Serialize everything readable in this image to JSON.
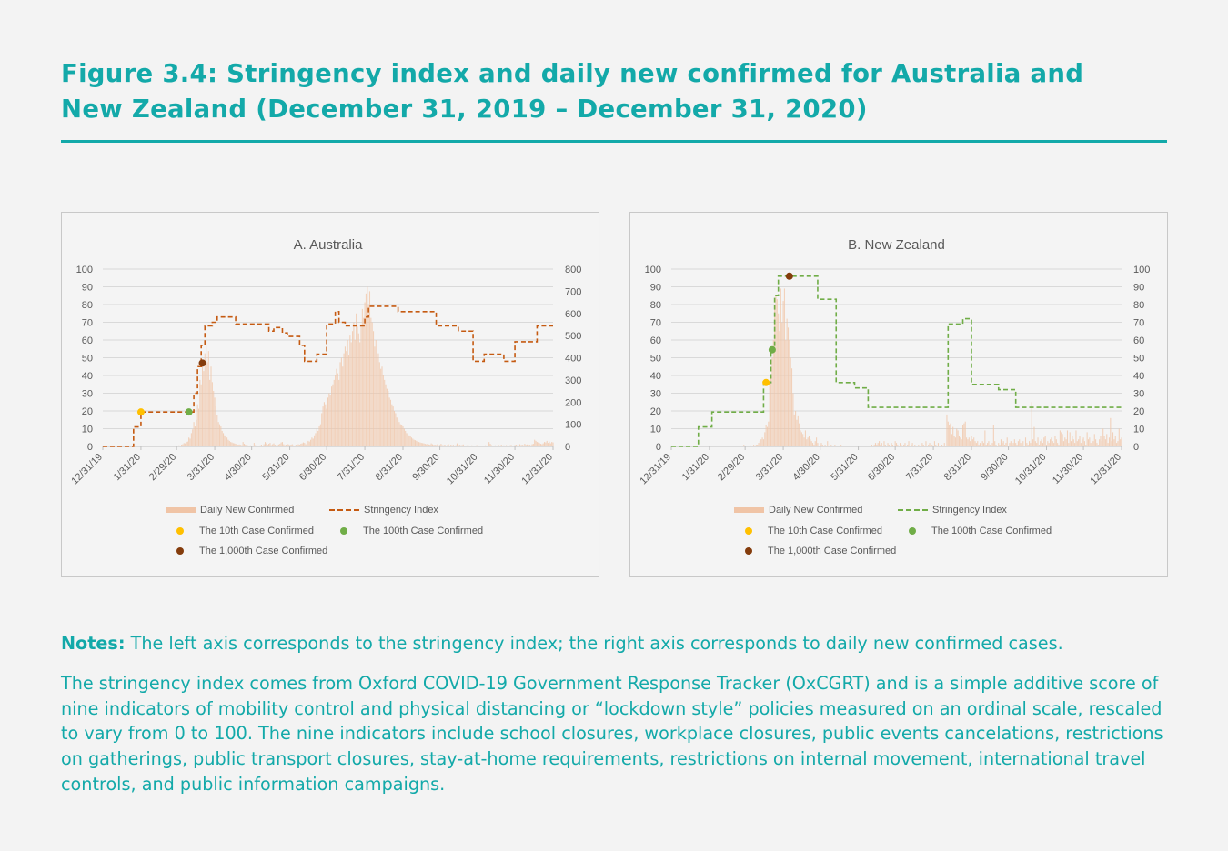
{
  "figure_title": "Figure 3.4: Stringency index and daily new confirmed for Australia and New Zealand (December 31, 2019 – December 31, 2020)",
  "notes": {
    "label": "Notes:",
    "line1": "The left axis corresponds to the stringency index; the right axis corresponds to daily new confirmed cases.",
    "paragraph": "The stringency index comes from Oxford COVID-19 Government Response Tracker (OxCGRT) and is a simple additive score of nine indicators of mobility control and physical distancing or “lockdown style” policies measured on an ordinal scale, rescaled to vary from 0 to 100. The nine indicators include school closures, workplace closures, public events cancelations, restrictions on gatherings, public transport closures, stay-at-home requirements, restrictions on internal movement, international travel controls, and public information campaigns."
  },
  "chart_data": [
    {
      "type": "bar+line",
      "title": "A. Australia",
      "x_start": "12/31/19",
      "x_ticks": [
        "12/31/19",
        "1/31/20",
        "2/29/20",
        "3/31/20",
        "4/30/20",
        "5/31/20",
        "6/30/20",
        "7/31/20",
        "8/31/20",
        "9/30/20",
        "10/31/20",
        "11/30/20",
        "12/31/20"
      ],
      "x_tick_days": [
        0,
        31,
        60,
        91,
        121,
        152,
        182,
        213,
        244,
        274,
        305,
        335,
        366
      ],
      "left_axis": {
        "range": [
          0,
          100
        ],
        "ticks": [
          0,
          10,
          20,
          30,
          40,
          50,
          60,
          70,
          80,
          90,
          100
        ]
      },
      "right_axis": {
        "range": [
          0,
          800
        ],
        "ticks": [
          0,
          100,
          200,
          300,
          400,
          500,
          600,
          700,
          800
        ]
      },
      "grid": true,
      "legend_placement": "bottom",
      "legend": {
        "bars": "Daily New Confirmed",
        "line": "Stringency Index",
        "p10": "The 10th Case Confirmed",
        "p100": "The 100th Case Confirmed",
        "p1000": "The 1,000th Case Confirmed"
      },
      "colors": {
        "bars": "#f0c4a6",
        "line": "#c55a11",
        "p10": "#ffc000",
        "p100": "#70ad47",
        "p1000": "#843c0c"
      },
      "daily_new_confirmed": [
        0,
        0,
        0,
        0,
        0,
        0,
        0,
        0,
        0,
        0,
        0,
        0,
        0,
        0,
        0,
        0,
        0,
        0,
        0,
        0,
        0,
        0,
        0,
        0,
        0,
        1,
        0,
        0,
        1,
        2,
        1,
        0,
        2,
        1,
        0,
        0,
        0,
        0,
        0,
        0,
        0,
        0,
        0,
        0,
        0,
        0,
        0,
        0,
        0,
        0,
        0,
        0,
        0,
        0,
        0,
        0,
        0,
        1,
        2,
        0,
        3,
        2,
        5,
        4,
        8,
        10,
        15,
        14,
        20,
        22,
        40,
        35,
        60,
        77,
        110,
        90,
        120,
        190,
        170,
        300,
        280,
        370,
        340,
        420,
        460,
        380,
        430,
        300,
        360,
        290,
        250,
        220,
        180,
        140,
        110,
        100,
        90,
        70,
        60,
        50,
        45,
        40,
        30,
        25,
        20,
        18,
        15,
        14,
        12,
        10,
        8,
        9,
        7,
        6,
        20,
        12,
        8,
        6,
        5,
        4,
        5,
        4,
        3,
        16,
        6,
        4,
        3,
        2,
        5,
        8,
        4,
        10,
        20,
        14,
        8,
        12,
        16,
        6,
        10,
        14,
        8,
        5,
        6,
        9,
        12,
        18,
        20,
        10,
        6,
        8,
        12,
        9,
        6,
        8,
        10,
        5,
        4,
        8,
        6,
        10,
        8,
        12,
        14,
        18,
        16,
        10,
        20,
        25,
        22,
        30,
        40,
        35,
        50,
        60,
        80,
        70,
        90,
        100,
        150,
        180,
        200,
        190,
        170,
        220,
        240,
        230,
        270,
        280,
        300,
        320,
        350,
        330,
        300,
        380,
        400,
        360,
        420,
        450,
        430,
        480,
        410,
        500,
        470,
        520,
        560,
        480,
        600,
        540,
        510,
        470,
        550,
        620,
        580,
        650,
        690,
        720,
        640,
        700,
        580,
        560,
        520,
        450,
        480,
        400,
        420,
        380,
        350,
        360,
        320,
        300,
        280,
        260,
        250,
        220,
        210,
        190,
        180,
        160,
        150,
        130,
        120,
        110,
        100,
        95,
        90,
        80,
        70,
        60,
        55,
        50,
        45,
        40,
        35,
        30,
        28,
        25,
        22,
        20,
        18,
        16,
        15,
        14,
        12,
        10,
        12,
        9,
        8,
        14,
        10,
        7,
        8,
        6,
        10,
        5,
        7,
        12,
        6,
        5,
        8,
        4,
        6,
        10,
        4,
        8,
        5,
        7,
        3,
        6,
        14,
        4,
        8,
        5,
        6,
        9,
        4,
        3,
        5,
        6,
        4,
        3,
        5,
        3,
        2,
        4,
        6,
        3,
        2,
        4,
        3,
        2,
        3,
        5,
        2,
        4,
        20,
        12,
        6,
        4,
        3,
        5,
        2,
        4,
        6,
        3,
        8,
        4,
        5,
        3,
        6,
        4,
        3,
        5,
        7,
        4,
        2,
        6,
        8,
        5,
        4,
        10,
        6,
        8,
        5,
        12,
        7,
        9,
        6,
        8,
        5,
        10,
        12,
        30,
        25,
        20,
        18,
        15,
        12,
        10,
        14,
        20,
        18,
        25,
        16,
        22,
        14,
        20,
        18
      ],
      "stringency_steps": [
        [
          0,
          0
        ],
        [
          25,
          11
        ],
        [
          31,
          19.4
        ],
        [
          74,
          30
        ],
        [
          77,
          45
        ],
        [
          80,
          57
        ],
        [
          83,
          68
        ],
        [
          89,
          70
        ],
        [
          93,
          73
        ],
        [
          108,
          69
        ],
        [
          135,
          65
        ],
        [
          139,
          67
        ],
        [
          146,
          64
        ],
        [
          150,
          62
        ],
        [
          160,
          57
        ],
        [
          164,
          48
        ],
        [
          174,
          52
        ],
        [
          182,
          69
        ],
        [
          189,
          76
        ],
        [
          192,
          70
        ],
        [
          197,
          68
        ],
        [
          213,
          73
        ],
        [
          216,
          79
        ],
        [
          240,
          76
        ],
        [
          271,
          68
        ],
        [
          289,
          65
        ],
        [
          301,
          48
        ],
        [
          310,
          52
        ],
        [
          326,
          48
        ],
        [
          335,
          59
        ],
        [
          353,
          68
        ],
        [
          366,
          68
        ]
      ],
      "markers": {
        "p10": [
          31,
          19.4
        ],
        "p100": [
          70,
          19.4
        ],
        "p1000": [
          81,
          47
        ]
      }
    },
    {
      "type": "bar+line",
      "title": "B. New Zealand",
      "x_start": "12/31/19",
      "x_ticks": [
        "12/31/19",
        "1/31/20",
        "2/29/20",
        "3/31/20",
        "4/30/20",
        "5/31/20",
        "6/30/20",
        "7/31/20",
        "8/31/20",
        "9/30/20",
        "10/31/20",
        "11/30/20",
        "12/31/20"
      ],
      "x_tick_days": [
        0,
        31,
        60,
        91,
        121,
        152,
        182,
        213,
        244,
        274,
        305,
        335,
        366
      ],
      "left_axis": {
        "range": [
          0,
          100
        ],
        "ticks": [
          0,
          10,
          20,
          30,
          40,
          50,
          60,
          70,
          80,
          90,
          100
        ]
      },
      "right_axis": {
        "range": [
          0,
          100
        ],
        "ticks": [
          0,
          10,
          20,
          30,
          40,
          50,
          60,
          70,
          80,
          90,
          100
        ]
      },
      "grid": true,
      "legend_placement": "bottom",
      "legend": {
        "bars": "Daily New Confirmed",
        "line": "Stringency Index",
        "p10": "The 10th Case Confirmed",
        "p100": "The 100th Case Confirmed",
        "p1000": "The 1,000th Case Confirmed"
      },
      "colors": {
        "bars": "#f0c4a6",
        "line": "#70ad47",
        "p10": "#ffc000",
        "p100": "#70ad47",
        "p1000": "#843c0c"
      },
      "daily_new_confirmed": [
        0,
        0,
        0,
        0,
        0,
        0,
        0,
        0,
        0,
        0,
        0,
        0,
        0,
        0,
        0,
        0,
        0,
        0,
        0,
        0,
        0,
        0,
        0,
        0,
        0,
        0,
        0,
        0,
        0,
        0,
        0,
        0,
        0,
        0,
        0,
        0,
        0,
        0,
        0,
        0,
        0,
        0,
        0,
        0,
        0,
        0,
        0,
        0,
        0,
        0,
        0,
        0,
        0,
        0,
        0,
        0,
        0,
        0,
        0,
        1,
        0,
        0,
        0,
        0,
        1,
        0,
        0,
        1,
        0,
        1,
        1,
        2,
        3,
        4,
        5,
        4,
        8,
        12,
        11,
        14,
        36,
        40,
        50,
        60,
        78,
        85,
        83,
        75,
        65,
        89,
        70,
        82,
        89,
        60,
        72,
        67,
        60,
        50,
        44,
        30,
        18,
        20,
        15,
        17,
        13,
        9,
        8,
        7,
        5,
        9,
        4,
        5,
        6,
        4,
        3,
        2,
        1,
        3,
        5,
        2,
        0,
        1,
        2,
        1,
        0,
        1,
        0,
        3,
        0,
        2,
        1,
        0,
        0,
        1,
        0,
        0,
        0,
        0,
        1,
        0,
        0,
        0,
        0,
        0,
        0,
        0,
        0,
        0,
        0,
        0,
        0,
        0,
        0,
        0,
        0,
        0,
        0,
        0,
        0,
        0,
        0,
        0,
        0,
        1,
        0,
        1,
        2,
        1,
        2,
        3,
        1,
        2,
        0,
        3,
        1,
        0,
        2,
        1,
        0,
        2,
        1,
        0,
        3,
        2,
        1,
        0,
        2,
        1,
        0,
        1,
        2,
        0,
        1,
        3,
        0,
        1,
        2,
        0,
        1,
        0,
        0,
        1,
        0,
        0,
        2,
        1,
        0,
        3,
        0,
        1,
        2,
        0,
        1,
        0,
        3,
        1,
        0,
        2,
        0,
        0,
        1,
        0,
        2,
        0,
        18,
        14,
        12,
        13,
        7,
        11,
        6,
        5,
        10,
        9,
        6,
        5,
        4,
        12,
        13,
        14,
        5,
        4,
        5,
        3,
        6,
        4,
        5,
        3,
        2,
        3,
        1,
        2,
        0,
        3,
        2,
        9,
        1,
        2,
        3,
        1,
        0,
        2,
        12,
        3,
        1,
        0,
        2,
        1,
        4,
        2,
        3,
        1,
        2,
        5,
        0,
        2,
        3,
        1,
        2,
        4,
        2,
        1,
        3,
        4,
        2,
        1,
        3,
        0,
        5,
        2,
        1,
        3,
        2,
        25,
        4,
        11,
        3,
        2,
        5,
        1,
        3,
        4,
        2,
        5,
        6,
        1,
        3,
        2,
        4,
        5,
        3,
        2,
        6,
        4,
        2,
        1,
        9,
        8,
        7,
        3,
        5,
        4,
        9,
        2,
        8,
        3,
        6,
        4,
        2,
        9,
        3,
        4,
        6,
        2,
        4,
        5,
        3,
        1,
        8,
        4,
        5,
        2,
        4,
        3,
        7,
        4,
        2,
        1,
        4,
        6,
        3,
        10,
        6,
        4,
        7,
        2,
        5,
        16,
        3,
        8,
        4,
        6,
        2,
        3,
        10,
        4,
        5
      ],
      "stringency_steps": [
        [
          0,
          0
        ],
        [
          22,
          11
        ],
        [
          33,
          19.4
        ],
        [
          75,
          36
        ],
        [
          81,
          54
        ],
        [
          84,
          85
        ],
        [
          87,
          96
        ],
        [
          119,
          83
        ],
        [
          134,
          36
        ],
        [
          149,
          33
        ],
        [
          160,
          22
        ],
        [
          225,
          69
        ],
        [
          237,
          72
        ],
        [
          244,
          35
        ],
        [
          266,
          32
        ],
        [
          280,
          22
        ],
        [
          366,
          22
        ]
      ],
      "markers": {
        "p10": [
          77,
          36
        ],
        "p100": [
          82,
          54.5
        ],
        "p1000": [
          96,
          96
        ]
      }
    }
  ]
}
